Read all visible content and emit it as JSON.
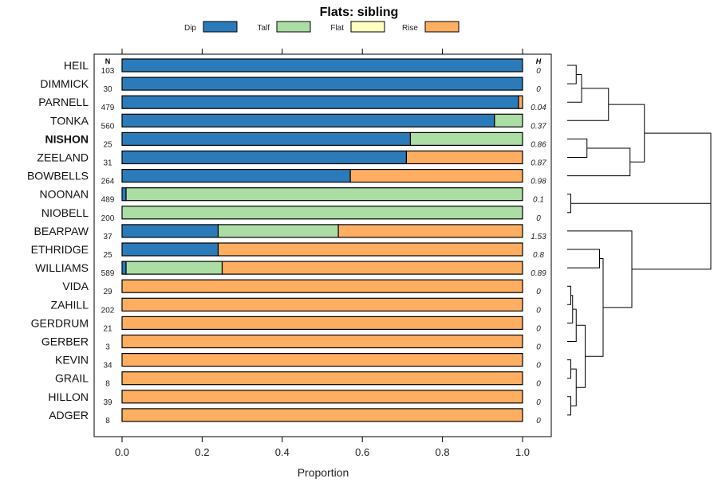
{
  "chart_data": {
    "type": "bar",
    "subtype": "stacked-horizontal-proportion",
    "title": "Flats: sibling",
    "xlabel": "Proportion",
    "ylabel": "",
    "xlim": [
      0,
      1
    ],
    "x_ticks": [
      "0.0",
      "0.2",
      "0.4",
      "0.6",
      "0.8",
      "1.0"
    ],
    "x_tick_values": [
      0,
      0.2,
      0.4,
      0.6,
      0.8,
      1.0
    ],
    "legend_position": "top",
    "series": [
      {
        "name": "Dip",
        "color": "#2b7bba"
      },
      {
        "name": "Talf",
        "color": "#abdda4"
      },
      {
        "name": "Flat",
        "color": "#ffffbf"
      },
      {
        "name": "Rise",
        "color": "#fdae61"
      }
    ],
    "n_header": "N",
    "h_header": "H",
    "highlighted_category": "NISHON",
    "categories": [
      "HEIL",
      "DIMMICK",
      "PARNELL",
      "TONKA",
      "NISHON",
      "ZEELAND",
      "BOWBELLS",
      "NOONAN",
      "NIOBELL",
      "BEARPAW",
      "ETHRIDGE",
      "WILLIAMS",
      "VIDA",
      "ZAHILL",
      "GERDRUM",
      "GERBER",
      "KEVIN",
      "GRAIL",
      "HILLON",
      "ADGER"
    ],
    "n_values": [
      "103",
      "30",
      "479",
      "560",
      "25",
      "31",
      "264",
      "489",
      "200",
      "37",
      "25",
      "589",
      "29",
      "202",
      "21",
      "3",
      "34",
      "8",
      "39",
      "8"
    ],
    "h_values": [
      "0",
      "0",
      "0.04",
      "0.37",
      "0.86",
      "0.87",
      "0.98",
      "0.1",
      "0",
      "1.53",
      "0.8",
      "0.89",
      "0",
      "0",
      "0",
      "0",
      "0",
      "0",
      "0",
      "0"
    ],
    "proportions": [
      [
        1.0,
        0,
        0,
        0
      ],
      [
        1.0,
        0,
        0,
        0
      ],
      [
        0.99,
        0,
        0,
        0.01
      ],
      [
        0.93,
        0.07,
        0,
        0
      ],
      [
        0.72,
        0.28,
        0,
        0
      ],
      [
        0.71,
        0,
        0,
        0.29
      ],
      [
        0.57,
        0,
        0,
        0.43
      ],
      [
        0.01,
        0.99,
        0,
        0
      ],
      [
        0,
        1.0,
        0,
        0
      ],
      [
        0.24,
        0.3,
        0,
        0.46
      ],
      [
        0.24,
        0,
        0,
        0.76
      ],
      [
        0.01,
        0.24,
        0,
        0.75
      ],
      [
        0,
        0,
        0,
        1.0
      ],
      [
        0,
        0,
        0,
        1.0
      ],
      [
        0,
        0,
        0,
        1.0
      ],
      [
        0,
        0,
        0,
        1.0
      ],
      [
        0,
        0,
        0,
        1.0
      ],
      [
        0,
        0,
        0,
        1.0
      ],
      [
        0,
        0,
        0,
        1.0
      ],
      [
        0,
        0,
        0,
        1.0
      ]
    ],
    "dendrogram": {
      "description": "hierarchical clustering of rows by composition",
      "nodes": [
        {
          "id": "a",
          "children": [
            0,
            1
          ]
        },
        {
          "id": "b",
          "children": [
            "a",
            2
          ]
        },
        {
          "id": "c",
          "children": [
            "b",
            3
          ]
        },
        {
          "id": "d",
          "children": [
            4,
            5
          ]
        },
        {
          "id": "e",
          "children": [
            "d",
            6
          ]
        },
        {
          "id": "f",
          "children": [
            "c",
            "e"
          ]
        },
        {
          "id": "g",
          "children": [
            7,
            8
          ]
        },
        {
          "id": "h",
          "children": [
            10,
            11
          ]
        },
        {
          "id": "i",
          "children": [
            12,
            13
          ]
        },
        {
          "id": "j",
          "children": [
            "i",
            14
          ]
        },
        {
          "id": "k",
          "children": [
            "j",
            15
          ]
        },
        {
          "id": "l",
          "children": [
            16,
            17
          ]
        },
        {
          "id": "m",
          "children": [
            18,
            19
          ]
        },
        {
          "id": "n",
          "children": [
            "l",
            "m"
          ]
        },
        {
          "id": "o",
          "children": [
            "k",
            "n"
          ]
        },
        {
          "id": "p",
          "children": [
            "h",
            "o"
          ]
        },
        {
          "id": "q",
          "children": [
            9,
            "p"
          ]
        },
        {
          "id": "r",
          "children": [
            "g",
            "q"
          ]
        },
        {
          "id": "s",
          "children": [
            "f",
            "r"
          ]
        }
      ],
      "heights": {
        "a": 0.05,
        "b": 0.08,
        "c": 0.23,
        "d": 0.11,
        "e": 0.35,
        "f": 0.43,
        "g": 0.02,
        "h": 0.18,
        "i": 0.02,
        "j": 0.03,
        "k": 0.05,
        "l": 0.02,
        "m": 0.02,
        "n": 0.05,
        "o": 0.1,
        "p": 0.2,
        "q": 0.36,
        "r": 0.8,
        "s": 0.8
      }
    }
  }
}
